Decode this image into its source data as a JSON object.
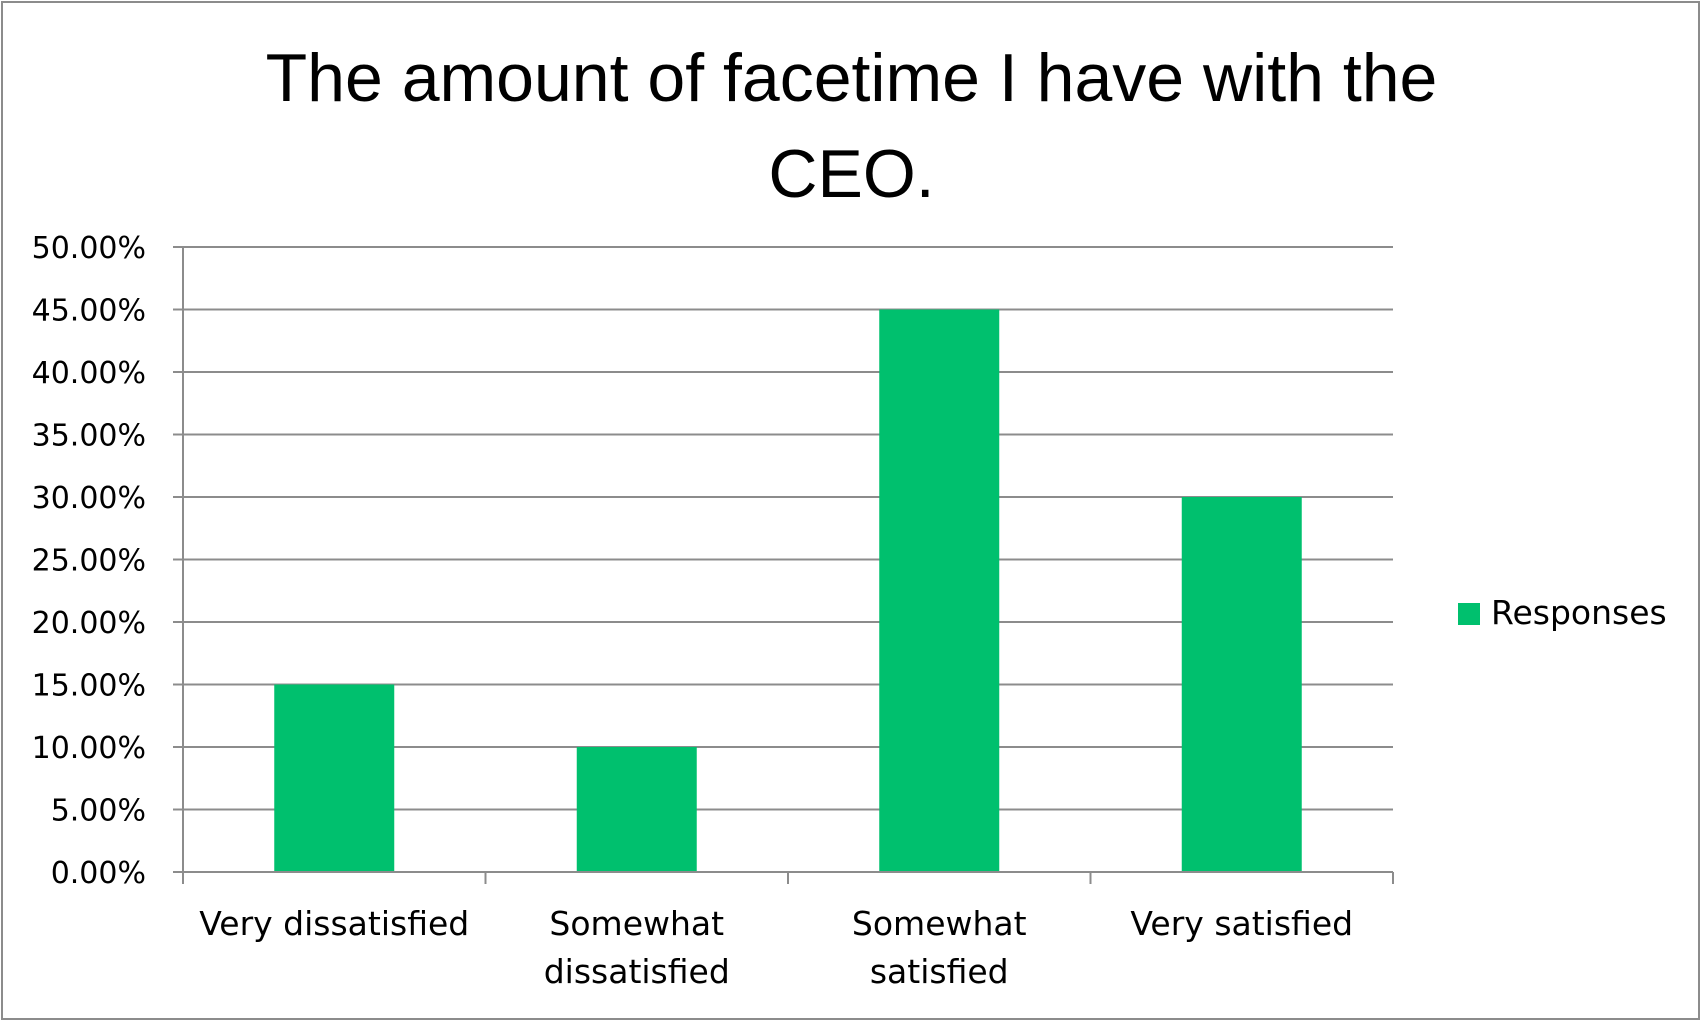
{
  "chart_data": {
    "type": "bar",
    "title": "The amount of facetime I have with the CEO.",
    "title_lines": [
      "The amount of facetime I have with the",
      "CEO."
    ],
    "categories": [
      "Very dissatisfied",
      "Somewhat dissatisfied",
      "Somewhat satisfied",
      "Very satisfied"
    ],
    "category_lines": [
      [
        "Very dissatisfied"
      ],
      [
        "Somewhat",
        "dissatisfied"
      ],
      [
        "Somewhat",
        "satisfied"
      ],
      [
        "Very satisfied"
      ]
    ],
    "series": [
      {
        "name": "Responses",
        "values": [
          0.15,
          0.1,
          0.45,
          0.3
        ],
        "color": "#00c06e"
      }
    ],
    "yticks": [
      0,
      0.05,
      0.1,
      0.15,
      0.2,
      0.25,
      0.3,
      0.35,
      0.4,
      0.45,
      0.5
    ],
    "ytick_labels": [
      "0.00%",
      "5.00%",
      "10.00%",
      "15.00%",
      "20.00%",
      "25.00%",
      "30.00%",
      "35.00%",
      "40.00%",
      "45.00%",
      "50.00%"
    ],
    "ylim": [
      0,
      0.5
    ],
    "xlabel": "",
    "ylabel": "",
    "grid": true,
    "legend_position": "right",
    "colors": {
      "bar": "#00c06e",
      "grid": "#8c8c8c",
      "frame": "#8c8c8c"
    }
  }
}
